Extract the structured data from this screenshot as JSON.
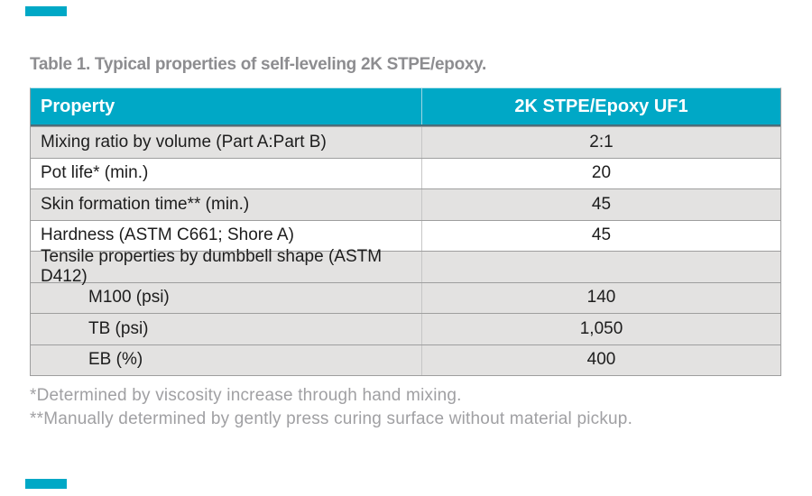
{
  "page": {
    "title": "Table 1. Typical properties of self-leveling 2K STPE/epoxy.",
    "accent_color": "#00a8c6"
  },
  "table": {
    "columns": [
      "Property",
      "2K STPE/Epoxy UF1"
    ],
    "rows": [
      {
        "property": "Mixing ratio by volume (Part A:Part B)",
        "value": "2:1",
        "shaded": true,
        "indented": false
      },
      {
        "property": "Pot life* (min.)",
        "value": "20",
        "shaded": false,
        "indented": false
      },
      {
        "property": "Skin formation time** (min.)",
        "value": "45",
        "shaded": true,
        "indented": false
      },
      {
        "property": "Hardness (ASTM C661; Shore A)",
        "value": "45",
        "shaded": false,
        "indented": false
      },
      {
        "property": "Tensile properties by dumbbell shape (ASTM D412)",
        "value": "",
        "shaded": true,
        "indented": false
      },
      {
        "property": "M100 (psi)",
        "value": "140",
        "shaded": true,
        "indented": true
      },
      {
        "property": "TB (psi)",
        "value": "1,050",
        "shaded": true,
        "indented": true
      },
      {
        "property": "EB (%)",
        "value": "400",
        "shaded": true,
        "indented": true
      }
    ]
  },
  "footnotes": [
    "*Determined by viscosity increase through hand mixing.",
    "**Manually determined by gently press curing surface without material pickup."
  ]
}
